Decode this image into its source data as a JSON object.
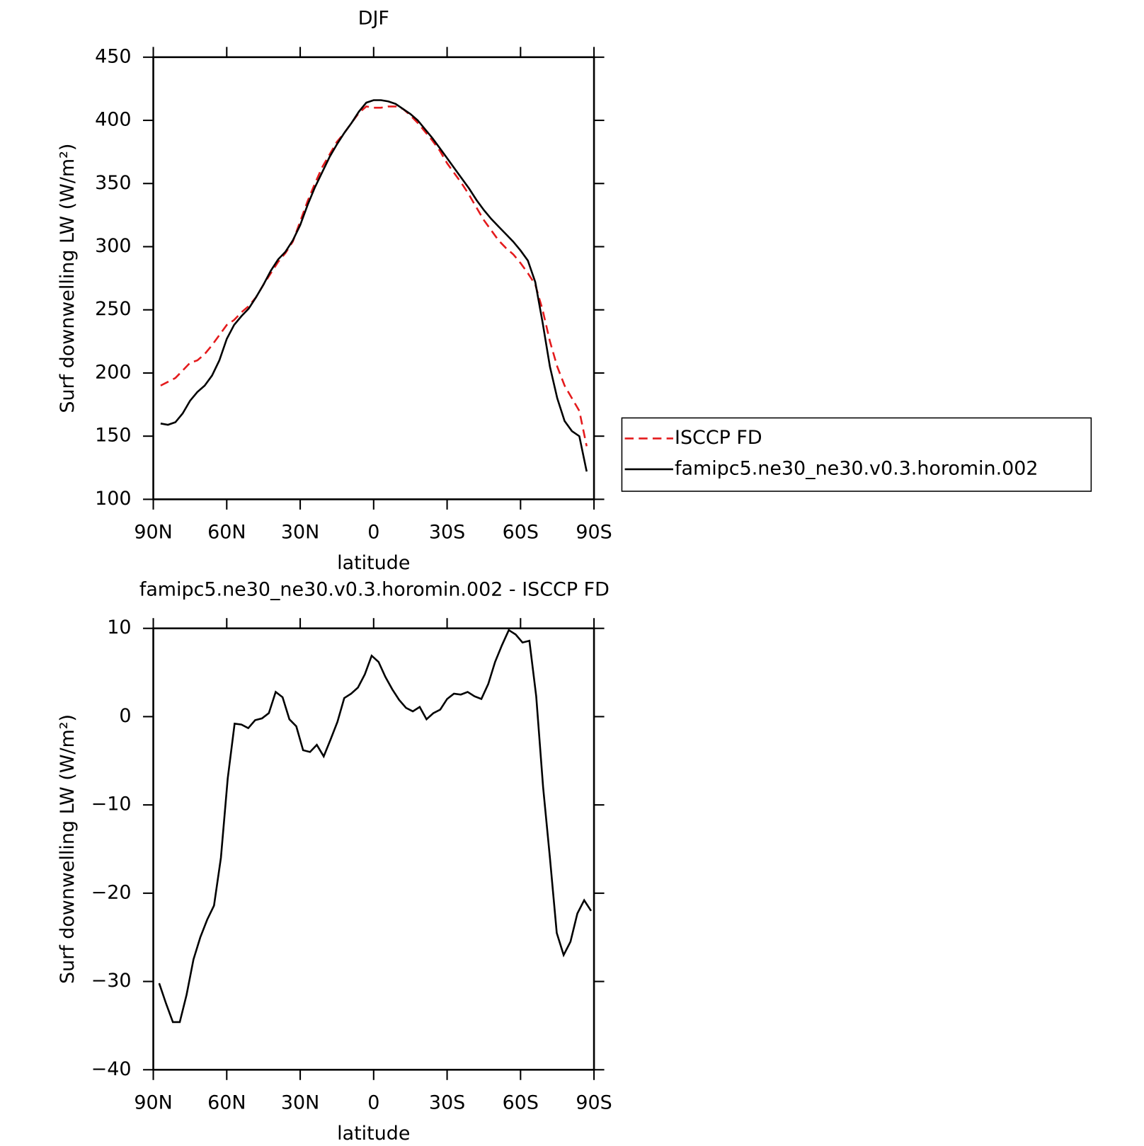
{
  "chart_data": [
    {
      "type": "line",
      "title": "DJF",
      "x_label": "latitude",
      "y_label": "Surf downwelling LW (W/m²)",
      "x": [
        87,
        84,
        81,
        78,
        75,
        72,
        69,
        66,
        63,
        60,
        57,
        54,
        51,
        48,
        45,
        42,
        39,
        36,
        33,
        30,
        27,
        24,
        21,
        18,
        15,
        12,
        9,
        6,
        3,
        0,
        -3,
        -6,
        -9,
        -12,
        -15,
        -18,
        -21,
        -24,
        -27,
        -30,
        -33,
        -36,
        -39,
        -42,
        -45,
        -48,
        -51,
        -54,
        -57,
        -60,
        -63,
        -66,
        -69,
        -72,
        -75,
        -78,
        -81,
        -84,
        -87
      ],
      "series": [
        {
          "name": "ISCCP FD",
          "color": "#e41a1c",
          "line_style": "dashed",
          "values": [
            190,
            193,
            196,
            202,
            208,
            210,
            215,
            222,
            230,
            238,
            242,
            248,
            253,
            260,
            270,
            279,
            288,
            295,
            304,
            320,
            336,
            350,
            363,
            373,
            383,
            390,
            398,
            406,
            411,
            410,
            410,
            411,
            411,
            409,
            404,
            398,
            391,
            384,
            376,
            366,
            358,
            350,
            341,
            331,
            321,
            313,
            305,
            299,
            294,
            287,
            279,
            270,
            250,
            225,
            205,
            190,
            180,
            170,
            142
          ]
        },
        {
          "name": "famipc5.ne30_ne30.v0.3.horomin.002",
          "color": "#000000",
          "line_style": "solid",
          "values": [
            160,
            159,
            161,
            168,
            178,
            185,
            190,
            198,
            210,
            227,
            238,
            245,
            251,
            260,
            270,
            281,
            290,
            296,
            305,
            317,
            333,
            347,
            359,
            371,
            381,
            390,
            398,
            407,
            414,
            416,
            416,
            415,
            413,
            409,
            405,
            400,
            393,
            386,
            378,
            370,
            362,
            354,
            346,
            337,
            329,
            322,
            316,
            310,
            304,
            297,
            289,
            272,
            240,
            205,
            180,
            162,
            154,
            150,
            122
          ]
        }
      ],
      "xlim": [
        90,
        -90
      ],
      "xticks": [
        {
          "value": 90,
          "label": "90N"
        },
        {
          "value": 60,
          "label": "60N"
        },
        {
          "value": 30,
          "label": "30N"
        },
        0,
        {
          "value": -30,
          "label": "30S"
        },
        {
          "value": -60,
          "label": "60S"
        },
        {
          "value": -90,
          "label": "90S"
        }
      ],
      "ylim": [
        100,
        450
      ],
      "yticks": [
        100,
        150,
        200,
        250,
        300,
        350,
        400,
        450
      ],
      "legend": "outside right"
    },
    {
      "type": "line",
      "title": "famipc5.ne30_ne30.v0.3.horomin.002 - ISCCP FD",
      "x_label": "latitude",
      "y_label": "Surf downwelling LW (W/m²)",
      "x": [
        87.6,
        84.8,
        82.0,
        79.2,
        76.4,
        73.6,
        70.8,
        68.0,
        65.2,
        62.4,
        59.6,
        56.8,
        54.0,
        51.2,
        48.4,
        45.6,
        42.8,
        40.0,
        37.2,
        34.4,
        31.6,
        28.8,
        26.0,
        23.2,
        20.4,
        17.6,
        14.8,
        12.0,
        9.2,
        6.4,
        3.6,
        0.8,
        -2.0,
        -4.8,
        -7.6,
        -10.4,
        -13.2,
        -16.0,
        -18.8,
        -21.6,
        -24.4,
        -27.2,
        -30.0,
        -32.8,
        -35.6,
        -38.4,
        -41.2,
        -44.0,
        -46.8,
        -49.6,
        -52.4,
        -55.2,
        -58.0,
        -60.8,
        -63.6,
        -66.4,
        -69.2,
        -72.0,
        -74.8,
        -77.6,
        -80.4,
        -83.2,
        -86.0,
        -88.8
      ],
      "series": [
        {
          "color": "#000000",
          "line_style": "solid",
          "values": [
            -30.2,
            -32.5,
            -34.6,
            -34.6,
            -31.5,
            -27.5,
            -25,
            -23,
            -21.4,
            -16,
            -7,
            -0.8,
            -0.9,
            -1.3,
            -0.4,
            -0.2,
            0.4,
            2.8,
            2.2,
            -0.3,
            -1.1,
            -3.8,
            -4,
            -3.2,
            -4.5,
            -2.6,
            -0.6,
            2.1,
            2.6,
            3.3,
            4.8,
            6.9,
            6.2,
            4.5,
            3.1,
            1.9,
            1,
            0.6,
            1.1,
            -0.3,
            0.4,
            0.8,
            2,
            2.6,
            2.5,
            2.8,
            2.3,
            2,
            3.7,
            6.2,
            8.1,
            9.8,
            9.3,
            8.4,
            8.6,
            2.3,
            -8,
            -16,
            -24.5,
            -27,
            -25.5,
            -22.3,
            -20.8,
            -22
          ]
        }
      ],
      "xlim": [
        90,
        -90
      ],
      "xticks": [
        {
          "value": 90,
          "label": "90N"
        },
        {
          "value": 60,
          "label": "60N"
        },
        {
          "value": 30,
          "label": "30N"
        },
        0,
        {
          "value": -30,
          "label": "30S"
        },
        {
          "value": -60,
          "label": "60S"
        },
        {
          "value": -90,
          "label": "90S"
        }
      ],
      "ylim": [
        -40,
        10
      ],
      "yticks": [
        {
          "value": -40,
          "label": "−40"
        },
        {
          "value": -30,
          "label": "−30"
        },
        {
          "value": -20,
          "label": "−20"
        },
        {
          "value": -10,
          "label": "−10"
        },
        0,
        10
      ]
    }
  ]
}
